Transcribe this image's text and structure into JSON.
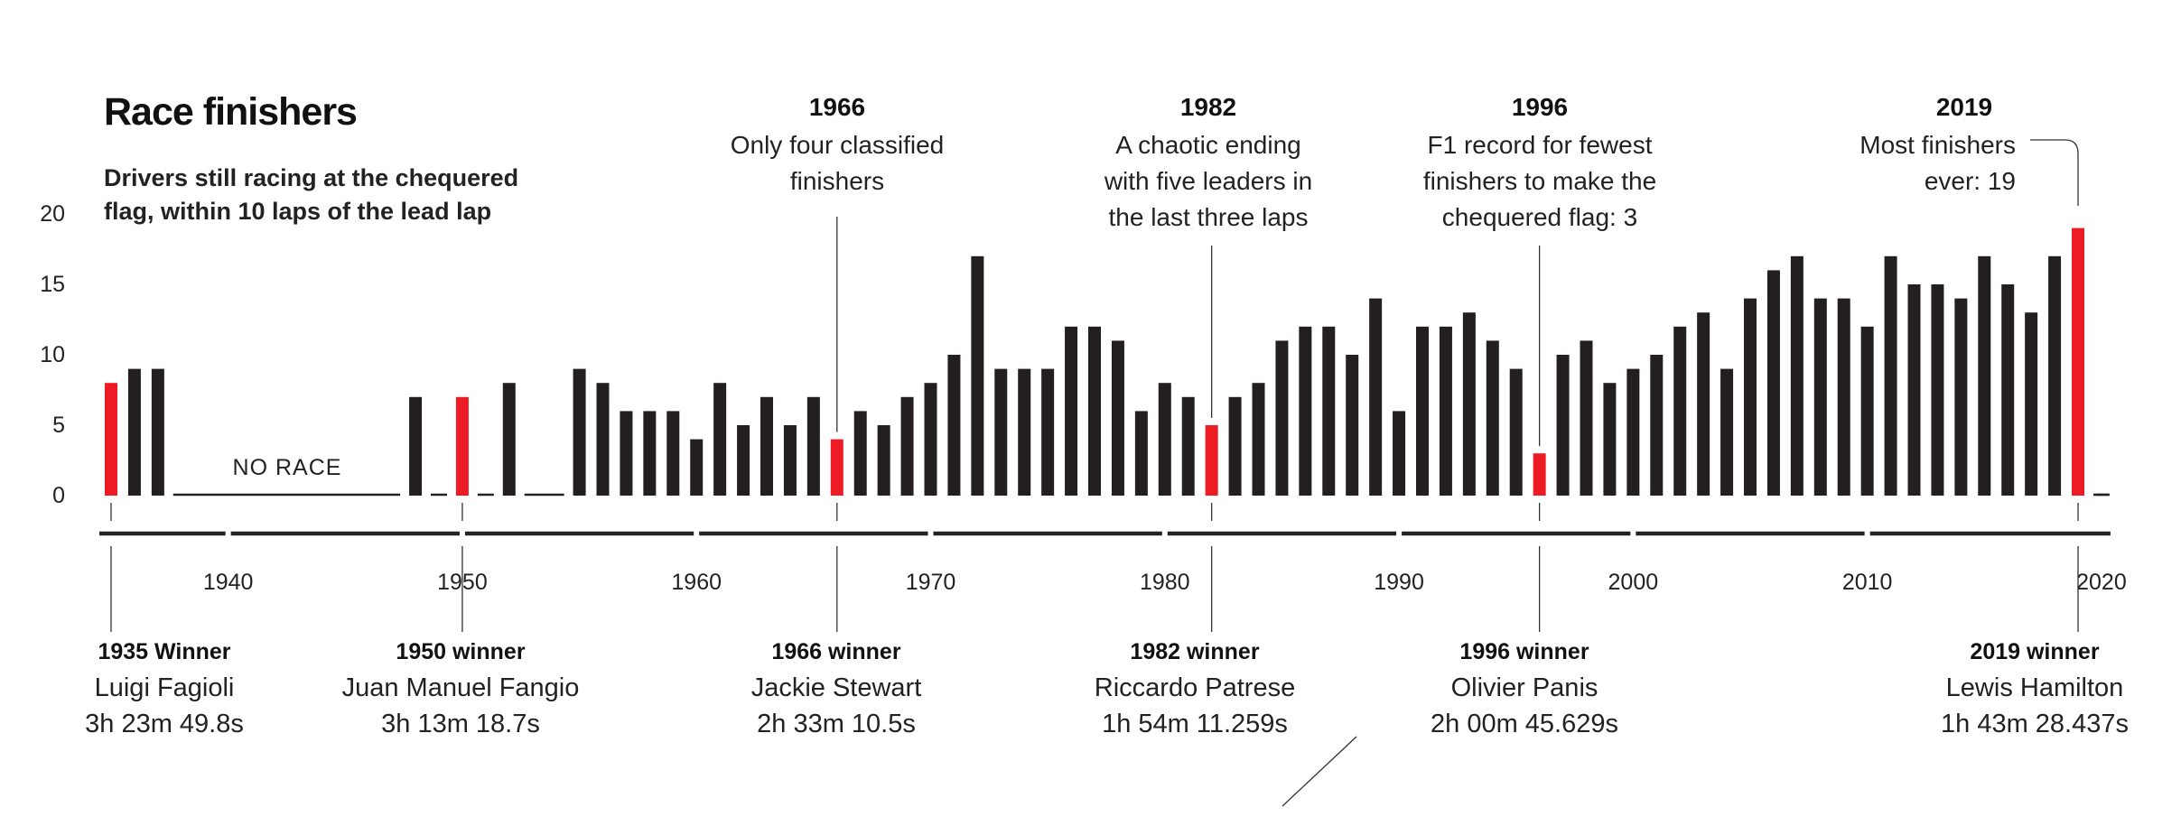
{
  "chart_data": {
    "type": "bar",
    "title": "Race finishers",
    "subtitle": [
      "Drivers still racing at the chequered",
      "flag, within 10 laps of the lead lap"
    ],
    "ylim": [
      0,
      20
    ],
    "yticks": [
      "0",
      "5",
      "10",
      "15",
      "20"
    ],
    "xticks": [
      "1940",
      "1950",
      "1960",
      "1970",
      "1980",
      "1990",
      "2000",
      "2010",
      "2020"
    ],
    "no_race_label": "NO RACE",
    "highlight_color": "#ed1c24",
    "bar_color": "#231f20",
    "highlight_years": [
      1935,
      1950,
      1966,
      1982,
      1996,
      2019
    ],
    "x": [
      1935,
      1936,
      1937,
      1938,
      1939,
      1940,
      1941,
      1942,
      1943,
      1944,
      1945,
      1946,
      1947,
      1948,
      1949,
      1950,
      1951,
      1952,
      1953,
      1954,
      1955,
      1956,
      1957,
      1958,
      1959,
      1960,
      1961,
      1962,
      1963,
      1964,
      1965,
      1966,
      1967,
      1968,
      1969,
      1970,
      1971,
      1972,
      1973,
      1974,
      1975,
      1976,
      1977,
      1978,
      1979,
      1980,
      1981,
      1982,
      1983,
      1984,
      1985,
      1986,
      1987,
      1988,
      1989,
      1990,
      1991,
      1992,
      1993,
      1994,
      1995,
      1996,
      1997,
      1998,
      1999,
      2000,
      2001,
      2002,
      2003,
      2004,
      2005,
      2006,
      2007,
      2008,
      2009,
      2010,
      2011,
      2012,
      2013,
      2014,
      2015,
      2016,
      2017,
      2018,
      2019,
      2020
    ],
    "values": [
      8,
      9,
      9,
      null,
      null,
      null,
      null,
      null,
      null,
      null,
      null,
      null,
      null,
      7,
      null,
      7,
      null,
      8,
      null,
      null,
      9,
      8,
      6,
      6,
      6,
      4,
      8,
      5,
      7,
      5,
      7,
      4,
      6,
      5,
      7,
      8,
      10,
      17,
      9,
      9,
      9,
      12,
      12,
      11,
      6,
      8,
      7,
      5,
      7,
      8,
      11,
      12,
      12,
      10,
      14,
      6,
      12,
      12,
      13,
      11,
      9,
      3,
      10,
      11,
      8,
      9,
      10,
      12,
      13,
      9,
      14,
      16,
      17,
      14,
      14,
      12,
      17,
      15,
      15,
      14,
      17,
      15,
      13,
      17,
      19,
      null
    ],
    "annotations": [
      {
        "year": "1966",
        "lines": [
          "Only four classified",
          "finishers"
        ]
      },
      {
        "year": "1982",
        "lines": [
          "A chaotic ending",
          "with five leaders in",
          "the last three laps"
        ]
      },
      {
        "year": "1996",
        "lines": [
          "F1 record for fewest",
          "finishers to make the",
          "chequered flag: 3"
        ]
      },
      {
        "year": "2019",
        "lines": [
          "Most finishers",
          "ever: 19"
        ]
      }
    ],
    "winners": [
      {
        "heading": "1935 Winner",
        "name": "Luigi Fagioli",
        "time": "3h 23m 49.8s"
      },
      {
        "heading": "1950 winner",
        "name": "Juan Manuel Fangio",
        "time": "3h 13m 18.7s"
      },
      {
        "heading": "1966 winner",
        "name": "Jackie Stewart",
        "time": "2h 33m 10.5s"
      },
      {
        "heading": "1982 winner",
        "name": "Riccardo Patrese",
        "time": "1h 54m 11.259s"
      },
      {
        "heading": "1996 winner",
        "name": "Olivier Panis",
        "time": "2h 00m 45.629s"
      },
      {
        "heading": "2019 winner",
        "name": "Lewis Hamilton",
        "time": "1h 43m 28.437s"
      }
    ]
  }
}
